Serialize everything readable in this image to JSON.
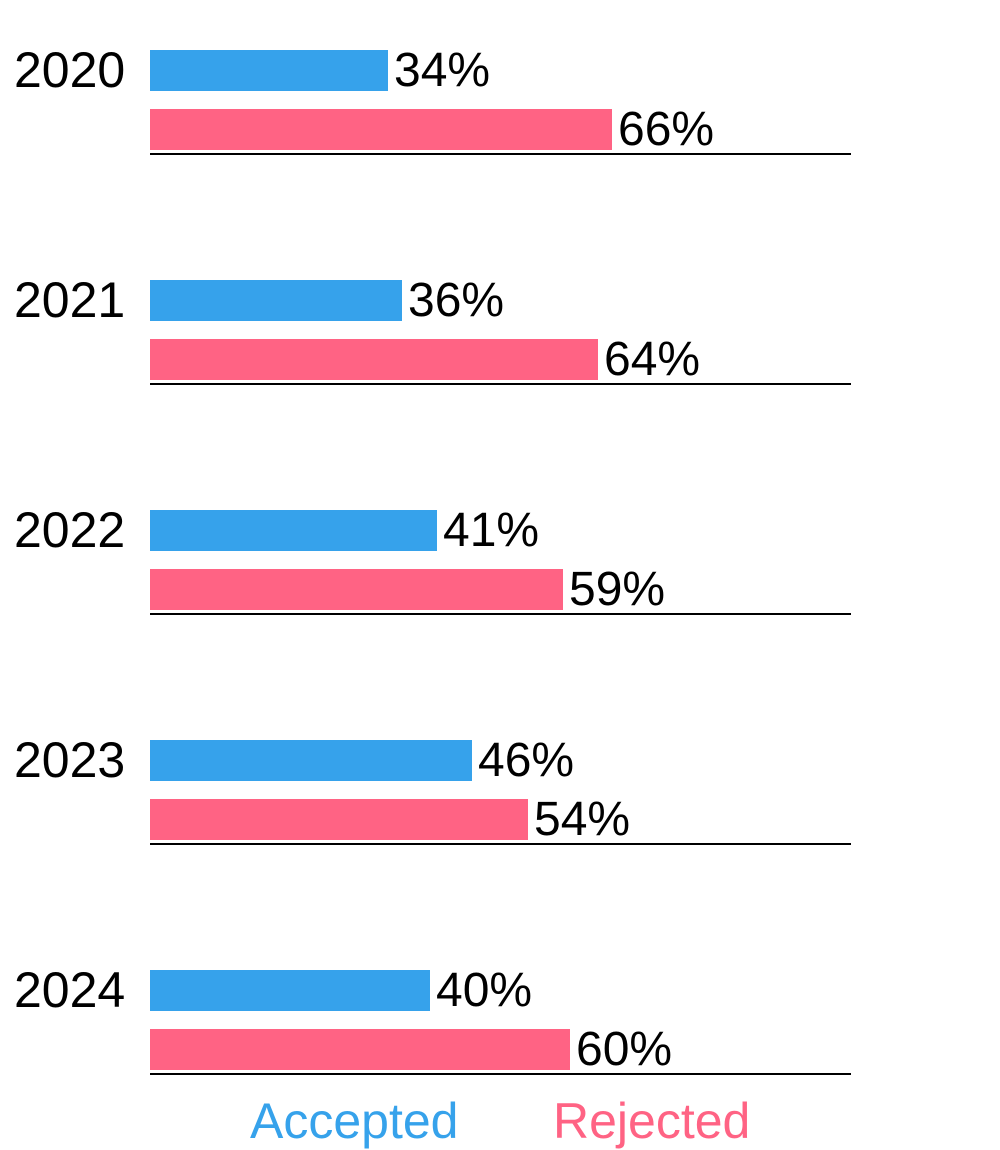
{
  "chart_data": {
    "type": "bar",
    "orientation": "horizontal",
    "title": "",
    "categories": [
      "2020",
      "2021",
      "2022",
      "2023",
      "2024"
    ],
    "series": [
      {
        "name": "Accepted",
        "color": "#36a2eb",
        "values": [
          34,
          36,
          41,
          46,
          40
        ]
      },
      {
        "name": "Rejected",
        "color": "#ff6384",
        "values": [
          66,
          64,
          59,
          54,
          60
        ]
      }
    ],
    "value_label_format": "percent",
    "xlim": [
      0,
      100
    ],
    "grid": false,
    "legend_position": "bottom"
  },
  "groups": [
    {
      "year": "2020",
      "accepted": 34,
      "rejected": 66,
      "accepted_label": "34%",
      "rejected_label": "66%"
    },
    {
      "year": "2021",
      "accepted": 36,
      "rejected": 64,
      "accepted_label": "36%",
      "rejected_label": "64%"
    },
    {
      "year": "2022",
      "accepted": 41,
      "rejected": 59,
      "accepted_label": "41%",
      "rejected_label": "59%"
    },
    {
      "year": "2023",
      "accepted": 46,
      "rejected": 54,
      "accepted_label": "46%",
      "rejected_label": "54%"
    },
    {
      "year": "2024",
      "accepted": 40,
      "rejected": 60,
      "accepted_label": "40%",
      "rejected_label": "60%"
    }
  ],
  "legend": {
    "accepted_label": "Accepted",
    "rejected_label": "Rejected"
  },
  "colors": {
    "accepted": "#36a2eb",
    "rejected": "#ff6384",
    "text": "#000000",
    "baseline": "#000000"
  }
}
